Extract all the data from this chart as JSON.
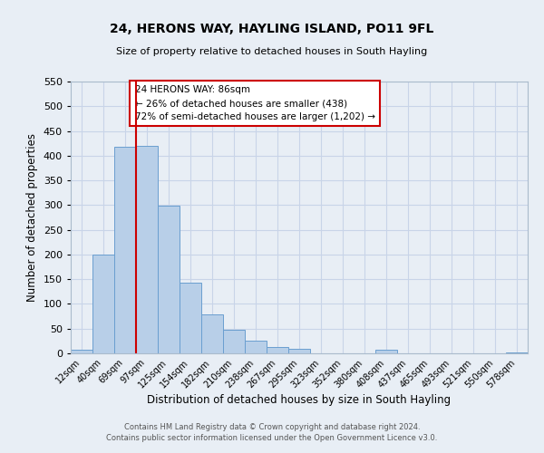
{
  "title": "24, HERONS WAY, HAYLING ISLAND, PO11 9FL",
  "subtitle": "Size of property relative to detached houses in South Hayling",
  "xlabel": "Distribution of detached houses by size in South Hayling",
  "ylabel": "Number of detached properties",
  "footer_line1": "Contains HM Land Registry data © Crown copyright and database right 2024.",
  "footer_line2": "Contains public sector information licensed under the Open Government Licence v3.0.",
  "bar_labels": [
    "12sqm",
    "40sqm",
    "69sqm",
    "97sqm",
    "125sqm",
    "154sqm",
    "182sqm",
    "210sqm",
    "238sqm",
    "267sqm",
    "295sqm",
    "323sqm",
    "352sqm",
    "380sqm",
    "408sqm",
    "437sqm",
    "465sqm",
    "493sqm",
    "521sqm",
    "550sqm",
    "578sqm"
  ],
  "bar_values": [
    8,
    200,
    418,
    420,
    298,
    143,
    78,
    48,
    25,
    12,
    9,
    0,
    0,
    0,
    7,
    0,
    0,
    0,
    0,
    0,
    2
  ],
  "bar_color": "#b8cfe8",
  "bar_edge_color": "#6a9fd0",
  "ylim": [
    0,
    550
  ],
  "yticks": [
    0,
    50,
    100,
    150,
    200,
    250,
    300,
    350,
    400,
    450,
    500,
    550
  ],
  "property_line_bin_index": 2.5,
  "annotation_title": "24 HERONS WAY: 86sqm",
  "annotation_line1": "← 26% of detached houses are smaller (438)",
  "annotation_line2": "72% of semi-detached houses are larger (1,202) →",
  "annotation_box_color": "#ffffff",
  "annotation_box_edge_color": "#cc0000",
  "grid_color": "#c8d4e8",
  "background_color": "#e8eef5"
}
